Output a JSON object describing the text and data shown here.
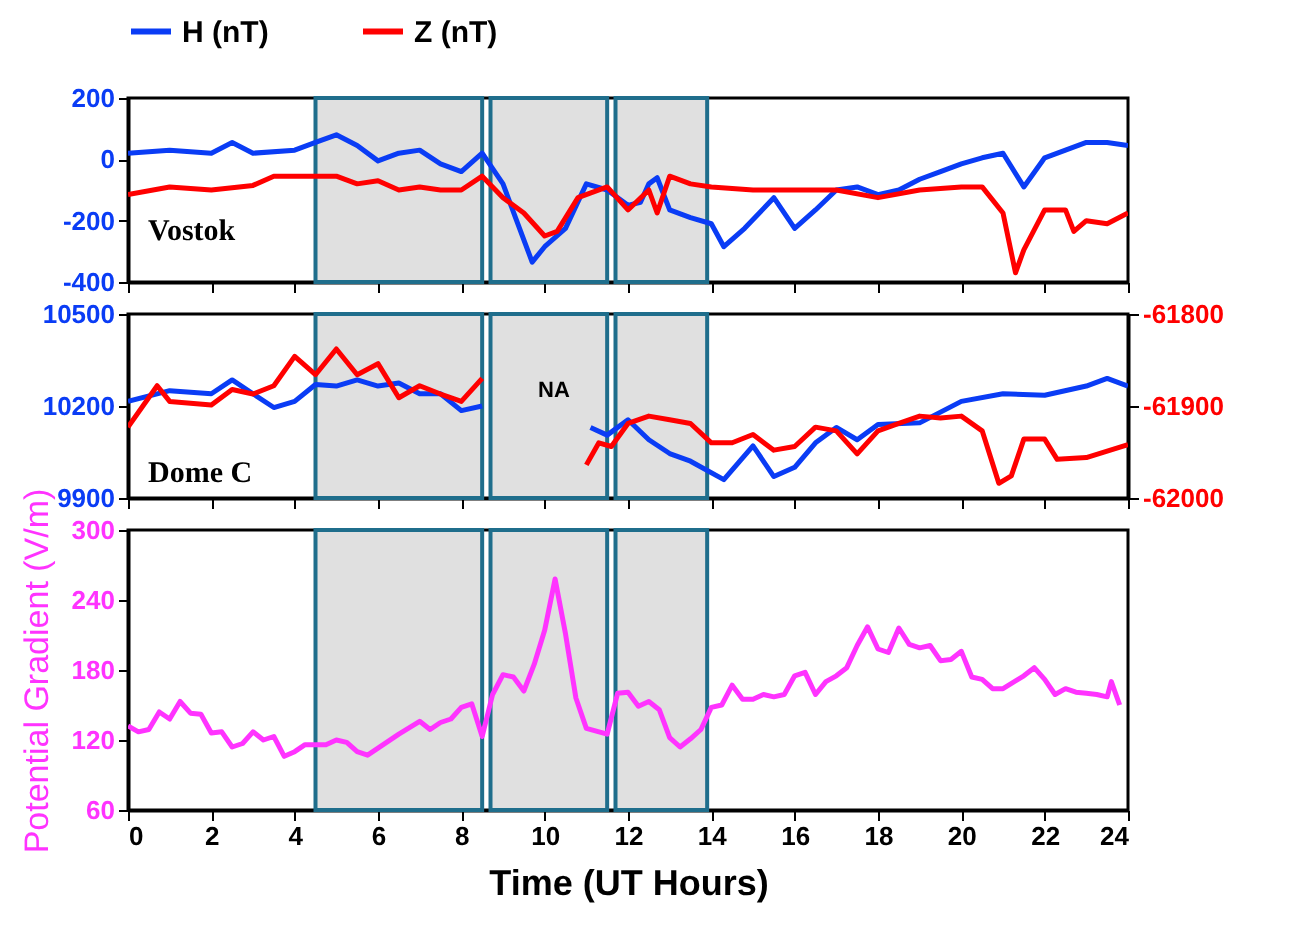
{
  "chart_data": [
    {
      "type": "line",
      "legend": "top",
      "tick_labels": "y",
      "xlim": [
        0,
        24
      ],
      "xticks": [
        0,
        2,
        4,
        6,
        8,
        10,
        12,
        14,
        16,
        18,
        20,
        22,
        24
      ],
      "ylim": [
        -400,
        200
      ],
      "yticks": [
        -400,
        -200,
        0,
        200
      ],
      "annotations": [
        "Vostok"
      ],
      "bands": [
        {
          "axis": "x",
          "from": 4.5,
          "to": 8.5,
          "color": "#e0e0e0"
        },
        {
          "axis": "x",
          "from": 8.7,
          "to": 11.5,
          "color": "#e0e0e0"
        },
        {
          "axis": "x",
          "from": 11.7,
          "to": 13.9,
          "color": "#e0e0e0"
        }
      ],
      "series": [
        {
          "name": "H (nT)",
          "color": "#0a3cf5",
          "x": [
            0,
            1,
            2,
            2.5,
            3,
            4,
            4.5,
            5,
            5.5,
            6,
            6.5,
            7,
            7.5,
            8,
            8.5,
            9,
            9.3,
            9.7,
            10,
            10.5,
            11,
            11.5,
            12,
            12.3,
            12.5,
            12.7,
            13,
            13.5,
            14,
            14.3,
            14.8,
            15.5,
            16,
            16.5,
            17,
            17.5,
            18,
            18.5,
            19,
            19.5,
            20,
            20.5,
            21,
            21.5,
            22,
            22.5,
            23,
            23.5,
            24
          ],
          "values": [
            20,
            30,
            20,
            55,
            20,
            30,
            55,
            80,
            45,
            -5,
            20,
            30,
            -15,
            -40,
            20,
            -80,
            -190,
            -335,
            -285,
            -225,
            -80,
            -100,
            -150,
            -140,
            -80,
            -60,
            -165,
            -190,
            -210,
            -285,
            -225,
            -125,
            -225,
            -165,
            -100,
            -90,
            -115,
            -100,
            -65,
            -40,
            -15,
            5,
            20,
            -90,
            5,
            30,
            55,
            55,
            45
          ]
        },
        {
          "name": "Z (nT)",
          "color": "#ff0000",
          "x": [
            0,
            1,
            2,
            3,
            3.5,
            4.5,
            5,
            5.5,
            6,
            6.5,
            7,
            7.5,
            8,
            8.5,
            9,
            9.5,
            10,
            10.3,
            10.8,
            11.5,
            12,
            12.5,
            12.7,
            13,
            13.5,
            14,
            15,
            16,
            17,
            18,
            19,
            20,
            20.5,
            21,
            21.3,
            21.5,
            22,
            22.5,
            22.7,
            23,
            23.5,
            24
          ],
          "values": [
            -115,
            -90,
            -100,
            -85,
            -55,
            -55,
            -55,
            -80,
            -70,
            -100,
            -90,
            -100,
            -100,
            -55,
            -125,
            -175,
            -250,
            -235,
            -125,
            -90,
            -165,
            -100,
            -175,
            -55,
            -80,
            -90,
            -100,
            -100,
            -100,
            -125,
            -100,
            -90,
            -90,
            -175,
            -370,
            -295,
            -165,
            -165,
            -235,
            -200,
            -210,
            -175
          ]
        }
      ]
    },
    {
      "type": "line",
      "tick_labels": "y",
      "xlim": [
        0,
        24
      ],
      "xticks": [
        0,
        2,
        4,
        6,
        8,
        10,
        12,
        14,
        16,
        18,
        20,
        22,
        24
      ],
      "ylim": [
        9900,
        10500
      ],
      "yticks": [
        9900,
        10200,
        10500
      ],
      "y2lim": [
        -62000,
        -61800
      ],
      "y2ticks": [
        -62000,
        -61900,
        -61800
      ],
      "annotations": [
        "Dome C",
        "NA"
      ],
      "bands": [
        {
          "axis": "x",
          "from": 4.5,
          "to": 8.5,
          "color": "#e0e0e0"
        },
        {
          "axis": "x",
          "from": 8.7,
          "to": 11.5,
          "color": "#e0e0e0"
        },
        {
          "axis": "x",
          "from": 11.7,
          "to": 13.9,
          "color": "#e0e0e0"
        }
      ],
      "series": [
        {
          "color": "#0a3cf5",
          "x": [
            0,
            1,
            2,
            2.5,
            3,
            3.5,
            4,
            4.5,
            5,
            5.5,
            6,
            6.5,
            7,
            7.5,
            8,
            8.5,
            8.6,
            11.1,
            11.5,
            12,
            12.5,
            13,
            13.5,
            14.3,
            15,
            15.5,
            16,
            16.5,
            17,
            17.5,
            18,
            19,
            20,
            21,
            22,
            23,
            23.5,
            24
          ],
          "values": [
            10215,
            10250,
            10240,
            10285,
            10240,
            10195,
            10215,
            10270,
            10265,
            10285,
            10265,
            10275,
            10240,
            10240,
            10185,
            10200,
            null,
            10130,
            10105,
            10155,
            10090,
            10045,
            10020,
            9960,
            10070,
            9970,
            10000,
            10080,
            10130,
            10090,
            10140,
            10145,
            10215,
            10240,
            10235,
            10265,
            10290,
            10265
          ]
        },
        {
          "color": "#ff0000",
          "axis": "y2",
          "x": [
            0,
            0.7,
            1,
            2,
            2.5,
            3,
            3.5,
            4,
            4.5,
            5,
            5.5,
            6,
            6.5,
            7,
            7.5,
            8,
            8.5,
            8.6,
            11,
            11.3,
            11.6,
            12,
            12.5,
            13,
            13.5,
            14,
            14.5,
            15,
            15.5,
            16,
            16.5,
            17,
            17.5,
            18,
            18.5,
            19,
            19.5,
            20,
            20.5,
            20.9,
            21.2,
            21.5,
            22,
            22.3,
            23,
            24
          ],
          "values": [
            -61923,
            -61878,
            -61895,
            -61899,
            -61882,
            -61887,
            -61878,
            -61846,
            -61866,
            -61838,
            -61866,
            -61854,
            -61891,
            -61878,
            -61887,
            -61895,
            -61870,
            null,
            -61964,
            -61940,
            -61944,
            -61919,
            -61911,
            -61915,
            -61919,
            -61940,
            -61940,
            -61931,
            -61948,
            -61944,
            -61923,
            -61927,
            -61952,
            -61927,
            -61919,
            -61911,
            -61913,
            -61911,
            -61927,
            -61984,
            -61976,
            -61936,
            -61936,
            -61958,
            -61956,
            -61942
          ]
        }
      ]
    },
    {
      "type": "line",
      "xlabel": "Time (UT Hours)",
      "ylabel": "Potential Gradient (V/m)",
      "xlim": [
        0,
        24
      ],
      "xticks": [
        0,
        2,
        4,
        6,
        8,
        10,
        12,
        14,
        16,
        18,
        20,
        22,
        24
      ],
      "ylim": [
        60,
        300
      ],
      "yticks": [
        60,
        120,
        180,
        240,
        300
      ],
      "bands": [
        {
          "axis": "x",
          "from": 4.5,
          "to": 8.5,
          "color": "#e0e0e0"
        },
        {
          "axis": "x",
          "from": 8.7,
          "to": 11.5,
          "color": "#e0e0e0"
        },
        {
          "axis": "x",
          "from": 11.7,
          "to": 13.9,
          "color": "#e0e0e0"
        }
      ],
      "series": [
        {
          "color": "#ff33ff",
          "x": [
            0,
            0.25,
            0.5,
            0.75,
            1,
            1.25,
            1.5,
            1.75,
            2,
            2.25,
            2.5,
            2.75,
            3,
            3.25,
            3.5,
            3.75,
            4,
            4.25,
            4.5,
            4.75,
            5,
            5.25,
            5.5,
            5.75,
            6,
            6.5,
            7,
            7.25,
            7.5,
            7.75,
            8,
            8.25,
            8.5,
            8.75,
            9,
            9.25,
            9.5,
            9.75,
            10,
            10.25,
            10.5,
            10.75,
            11,
            11.5,
            11.75,
            12,
            12.25,
            12.5,
            12.75,
            13,
            13.25,
            13.5,
            13.75,
            14,
            14.25,
            14.5,
            14.75,
            15,
            15.25,
            15.5,
            15.75,
            16,
            16.25,
            16.5,
            16.75,
            17,
            17.25,
            17.5,
            17.75,
            18,
            18.25,
            18.5,
            18.75,
            19,
            19.25,
            19.5,
            19.75,
            20,
            20.25,
            20.5,
            20.75,
            21,
            21.5,
            21.75,
            22,
            22.25,
            22.5,
            22.75,
            23,
            23.25,
            23.5,
            23.6,
            23.8
          ],
          "values": [
            132,
            127,
            129,
            144,
            138,
            153,
            143,
            142,
            126,
            127,
            114,
            117,
            127,
            120,
            123,
            106,
            110,
            116,
            116,
            116,
            120,
            118,
            110,
            107,
            113,
            125,
            136,
            129,
            135,
            138,
            148,
            151,
            123,
            159,
            176,
            174,
            162,
            185,
            214,
            258,
            211,
            156,
            130,
            125,
            160,
            161,
            149,
            153,
            146,
            122,
            114,
            121,
            129,
            148,
            150,
            167,
            155,
            155,
            159,
            157,
            159,
            175,
            178,
            159,
            170,
            175,
            182,
            201,
            217,
            198,
            195,
            216,
            202,
            199,
            201,
            188,
            189,
            196,
            174,
            172,
            164,
            164,
            175,
            182,
            172,
            159,
            164,
            161,
            160,
            159,
            157,
            170,
            150
          ]
        }
      ]
    }
  ]
}
